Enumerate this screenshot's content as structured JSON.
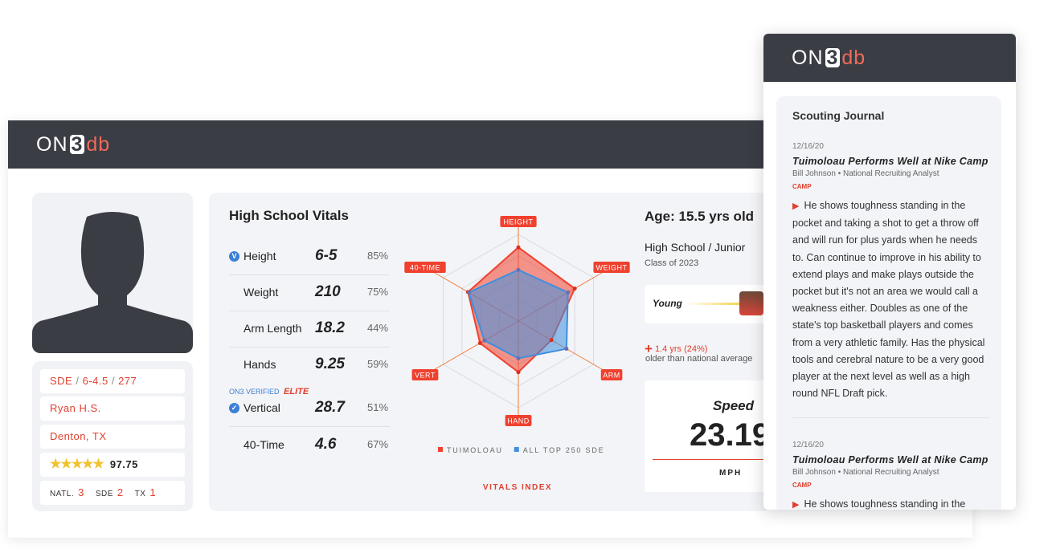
{
  "header": {
    "logo": [
      "ON",
      "3",
      "db"
    ]
  },
  "profile": {
    "position": [
      "SDE",
      "6-4.5",
      "277"
    ],
    "school": "Ryan H.S.",
    "location": "Denton, TX",
    "rating": "97.75",
    "rankings": [
      {
        "label": "NATL.",
        "value": "3"
      },
      {
        "label": "SDE",
        "value": "2"
      },
      {
        "label": "TX",
        "value": "1"
      }
    ]
  },
  "vitals": {
    "title": "High School Vitals",
    "rows": [
      {
        "label": "Height",
        "value": "6-5",
        "percentile": "85%"
      },
      {
        "label": "Weight",
        "value": "210",
        "percentile": "75%"
      },
      {
        "label": "Arm Length",
        "value": "18.2",
        "percentile": "44%"
      },
      {
        "label": "Hands",
        "value": "9.25",
        "percentile": "59%"
      },
      {
        "label": "Vertical",
        "value": "28.7",
        "percentile": "51%"
      },
      {
        "label": "40-Time",
        "value": "4.6",
        "percentile": "67%"
      }
    ],
    "verified": {
      "prefix": "ON3 VERIFIED",
      "badge": "ELITE"
    }
  },
  "chart_data": {
    "type": "radar",
    "title": "VITALS INDEX",
    "axes": [
      "HEIGHT",
      "WEIGHT",
      "ARM",
      "HAND",
      "VERT",
      "40-TIME"
    ],
    "rlim": [
      0,
      100
    ],
    "series": [
      {
        "name": "TUIMOLOAU",
        "color": "#f0412f",
        "values": [
          85,
          75,
          44,
          59,
          51,
          67
        ]
      },
      {
        "name": "ALL TOP 250 SDE",
        "color": "#3d8fe0",
        "values": [
          59,
          66,
          64,
          43,
          45,
          66
        ]
      }
    ]
  },
  "age": {
    "title": "Age: 15.5 yrs old",
    "level": "High School / Junior",
    "class": "Class of 2023",
    "bar_label": "Young",
    "delta": "1.4 yrs (24%)",
    "delta_note": "older than national average"
  },
  "speed": {
    "label": "Speed",
    "value": "23.19",
    "unit": "MPH"
  },
  "journal": {
    "logo": [
      "ON",
      "3",
      "db"
    ],
    "title": "Scouting Journal",
    "entries": [
      {
        "date": "12/16/20",
        "title": "Tuimoloau Performs Well at Nike Camp",
        "author": "Bill Johnson",
        "role": "National Recruiting Analyst",
        "tag": "CAMP",
        "body": "He shows toughness standing in the pocket and taking a shot to get a throw off and will run for plus yards when he needs to. Can continue to improve in his ability to extend plays and make plays outside the pocket but it's not an area we would call a weakness either. Doubles as one of the state's top basketball players and comes from a very athletic family. Has the physical tools and cerebral nature to be a very good player at the next level as well as a high round NFL Draft pick."
      },
      {
        "date": "12/16/20",
        "title": "Tuimoloau Performs Well at Nike Camp",
        "author": "Bill Johnson",
        "role": "National Recruiting Analyst",
        "tag": "CAMP",
        "body": "He shows toughness standing in the"
      }
    ]
  }
}
